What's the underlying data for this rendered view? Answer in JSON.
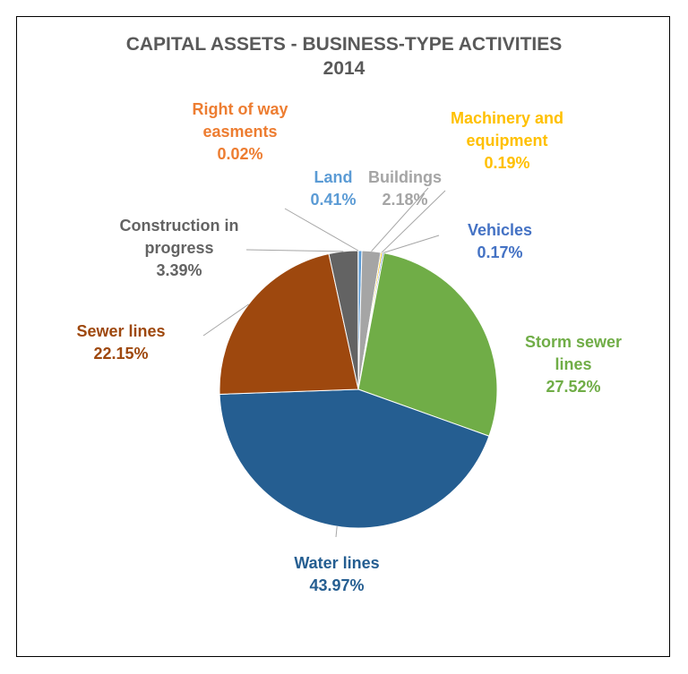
{
  "chart_data": {
    "type": "pie",
    "title": "CAPITAL ASSETS - BUSINESS-TYPE ACTIVITIES 2014",
    "categories": [
      "Land",
      "Buildings",
      "Machinery and equipment",
      "Vehicles",
      "Storm sewer lines",
      "Water lines",
      "Sewer lines",
      "Construction in progress",
      "Right of way easments"
    ],
    "values": [
      0.41,
      2.18,
      0.19,
      0.17,
      27.52,
      43.97,
      22.15,
      3.39,
      0.02
    ],
    "value_labels": [
      "0.41%",
      "2.18%",
      "0.19%",
      "0.17%",
      "27.52%",
      "43.97%",
      "22.15%",
      "3.39%",
      "0.02%"
    ],
    "colors": [
      "#5b9bd5",
      "#a5a5a5",
      "#ffc000",
      "#4472c4",
      "#70ad47",
      "#255e91",
      "#9e480e",
      "#636363",
      "#ed7d31"
    ]
  }
}
